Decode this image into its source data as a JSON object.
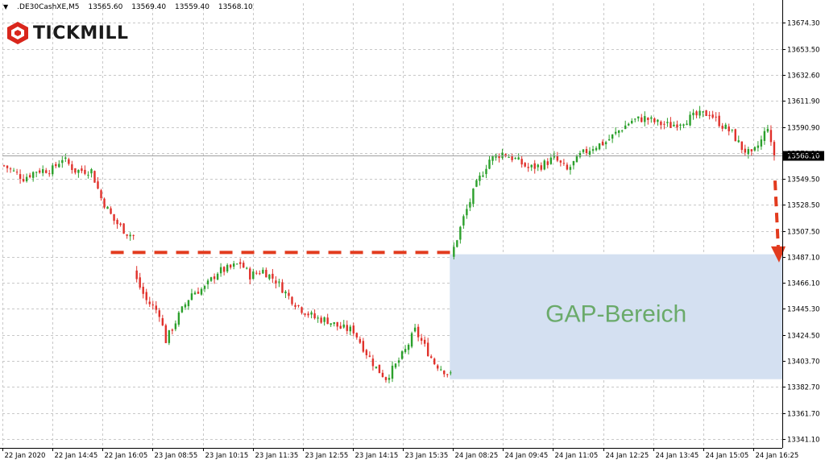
{
  "header": {
    "symbol": ".DE30CashXE,M5",
    "open": "13565.60",
    "high": "13569.40",
    "low": "13559.40",
    "close": "13568.10"
  },
  "logo": {
    "text": "TICKMILL"
  },
  "colors": {
    "bull": "#2ca02c",
    "bear": "#e0312b",
    "gap_fill": "#d4e0f1",
    "dashed": "#e23b1e",
    "grid": "#c8c8c8"
  },
  "chart_data": {
    "type": "candlestick",
    "ylim": [
      13334,
      13690
    ],
    "y_ticks": [
      13674.3,
      13653.5,
      13632.6,
      13611.9,
      13590.9,
      13570.1,
      13549.5,
      13528.5,
      13507.5,
      13487.1,
      13466.1,
      13445.3,
      13424.5,
      13403.7,
      13382.7,
      13361.7,
      13341.1
    ],
    "y_tick_labels": [
      "13674.30",
      "13653.50",
      "13632.60",
      "13611.90",
      "13590.90",
      "13570.10",
      "13549.50",
      "13528.50",
      "13507.50",
      "13487.10",
      "13466.10",
      "13445.30",
      "13424.50",
      "13403.70",
      "13382.70",
      "13361.70",
      "13341.10"
    ],
    "x_tick_labels": [
      "22 Jan 2020",
      "22 Jan 14:45",
      "22 Jan 16:05",
      "23 Jan 08:55",
      "23 Jan 10:15",
      "23 Jan 11:35",
      "23 Jan 12:55",
      "23 Jan 14:15",
      "23 Jan 15:35",
      "24 Jan 08:25",
      "24 Jan 09:45",
      "24 Jan 11:05",
      "24 Jan 12:25",
      "24 Jan 13:45",
      "24 Jan 15:05",
      "24 Jan 16:25"
    ],
    "current_price": 13568.1,
    "current_price_label": "13568.10",
    "close_path": [
      [
        0,
        13560
      ],
      [
        6,
        13550
      ],
      [
        10,
        13556
      ],
      [
        15,
        13557
      ],
      [
        18,
        13566
      ],
      [
        22,
        13556
      ],
      [
        27,
        13556
      ],
      [
        30,
        13534
      ],
      [
        34,
        13516
      ],
      [
        38,
        13506
      ],
      [
        40,
        13504
      ],
      [
        41,
        13468
      ],
      [
        44,
        13452
      ],
      [
        48,
        13442
      ],
      [
        50,
        13420
      ],
      [
        54,
        13440
      ],
      [
        58,
        13458
      ],
      [
        62,
        13462
      ],
      [
        66,
        13475
      ],
      [
        70,
        13478
      ],
      [
        73,
        13482
      ],
      [
        76,
        13472
      ],
      [
        80,
        13476
      ],
      [
        84,
        13468
      ],
      [
        88,
        13455
      ],
      [
        92,
        13445
      ],
      [
        96,
        13438
      ],
      [
        100,
        13436
      ],
      [
        104,
        13430
      ],
      [
        108,
        13428
      ],
      [
        112,
        13410
      ],
      [
        115,
        13398
      ],
      [
        118,
        13390
      ],
      [
        121,
        13400
      ],
      [
        124,
        13412
      ],
      [
        127,
        13428
      ],
      [
        130,
        13415
      ],
      [
        133,
        13402
      ],
      [
        136,
        13396
      ],
      [
        138,
        13392
      ],
      [
        139,
        13494
      ],
      [
        142,
        13518
      ],
      [
        146,
        13545
      ],
      [
        150,
        13565
      ],
      [
        154,
        13570
      ],
      [
        158,
        13565
      ],
      [
        162,
        13558
      ],
      [
        166,
        13560
      ],
      [
        170,
        13566
      ],
      [
        174,
        13556
      ],
      [
        178,
        13568
      ],
      [
        182,
        13575
      ],
      [
        186,
        13579
      ],
      [
        190,
        13588
      ],
      [
        194,
        13596
      ],
      [
        198,
        13598
      ],
      [
        202,
        13594
      ],
      [
        206,
        13592
      ],
      [
        210,
        13596
      ],
      [
        214,
        13600
      ],
      [
        218,
        13602
      ],
      [
        222,
        13592
      ],
      [
        225,
        13586
      ],
      [
        228,
        13574
      ],
      [
        231,
        13568
      ],
      [
        234,
        13580
      ],
      [
        236,
        13592
      ],
      [
        237,
        13576
      ],
      [
        238,
        13568
      ]
    ],
    "gap_lines": [
      {
        "y": 13490.5,
        "from_index": 33,
        "to_index": 138
      }
    ],
    "gap_zone": {
      "from_index": 138,
      "y_top": 13489,
      "y_bottom": 13389
    },
    "gap_label": "GAP-Bereich",
    "arrow": {
      "from_index": 239,
      "from_value": 13548,
      "to_value": 13485
    }
  }
}
